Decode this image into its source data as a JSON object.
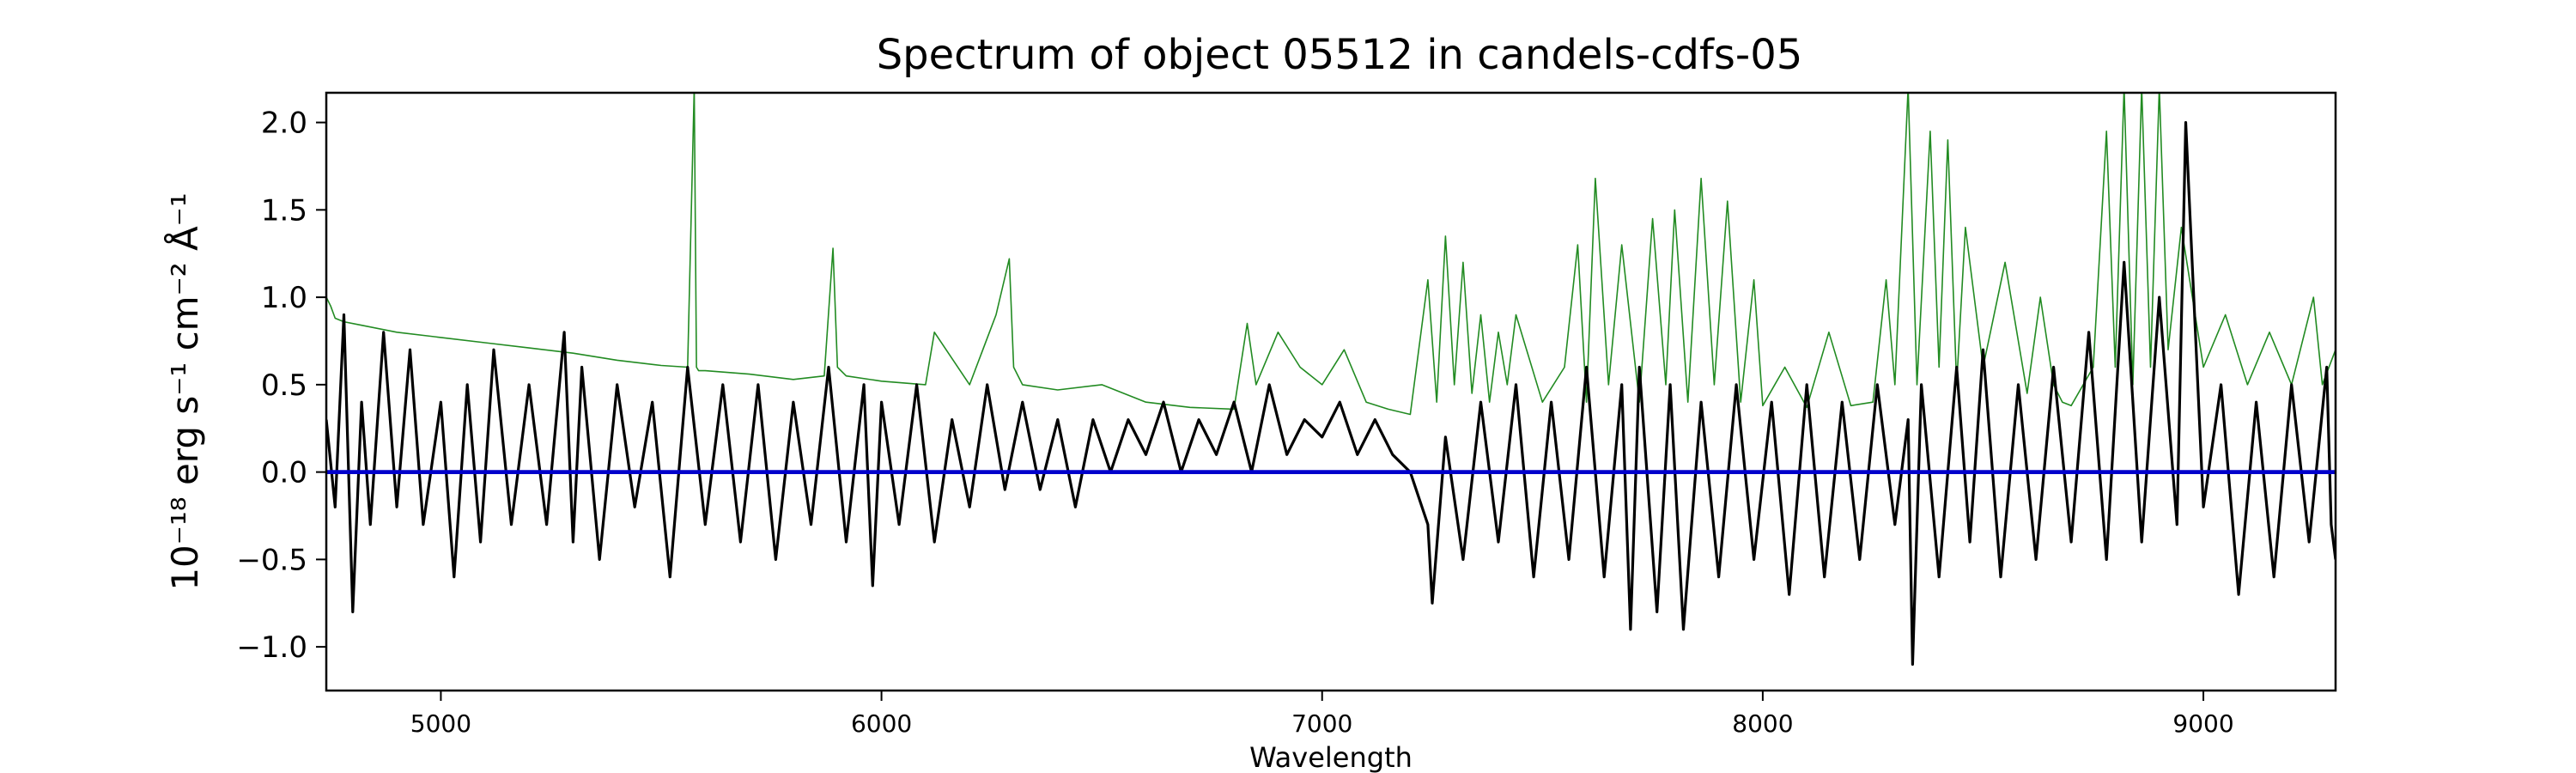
{
  "chart_data": {
    "type": "line",
    "title": "Spectrum of object 05512 in candels-cdfs-05",
    "xlabel": "Wavelength",
    "ylabel": "10⁻¹⁸ erg s⁻¹ cm⁻² Å⁻¹",
    "xlim": [
      4740,
      9300
    ],
    "ylim": [
      -1.25,
      2.17
    ],
    "xticks": [
      5000,
      6000,
      7000,
      8000,
      9000
    ],
    "xtick_labels": [
      "5000",
      "6000",
      "7000",
      "8000",
      "9000"
    ],
    "yticks": [
      2.0,
      1.5,
      1.0,
      0.5,
      0.0,
      -0.5,
      -1.0
    ],
    "ytick_labels": [
      "2.0",
      "1.5",
      "1.0",
      "0.5",
      "0.0",
      "−0.5",
      "−1.0"
    ],
    "grid": false,
    "legend": "none",
    "series": [
      {
        "color": "#228b22",
        "linewidth": 1,
        "x": [
          4740,
          4750,
          4760,
          4780,
          4820,
          4900,
          5000,
          5100,
          5200,
          5300,
          5400,
          5500,
          5560,
          5575,
          5580,
          5585,
          5600,
          5700,
          5800,
          5870,
          5890,
          5900,
          5920,
          6000,
          6100,
          6120,
          6200,
          6260,
          6290,
          6300,
          6320,
          6400,
          6500,
          6600,
          6700,
          6800,
          6830,
          6850,
          6900,
          6950,
          7000,
          7050,
          7100,
          7150,
          7200,
          7240,
          7260,
          7280,
          7300,
          7320,
          7340,
          7360,
          7380,
          7400,
          7420,
          7440,
          7500,
          7550,
          7580,
          7600,
          7620,
          7650,
          7680,
          7720,
          7750,
          7780,
          7800,
          7830,
          7860,
          7890,
          7920,
          7950,
          7980,
          8000,
          8050,
          8100,
          8150,
          8200,
          8250,
          8280,
          8300,
          8330,
          8350,
          8380,
          8400,
          8420,
          8440,
          8460,
          8500,
          8550,
          8600,
          8630,
          8660,
          8680,
          8700,
          8750,
          8780,
          8800,
          8820,
          8840,
          8860,
          8880,
          8900,
          8920,
          8950,
          9000,
          9050,
          9100,
          9150,
          9200,
          9250,
          9270,
          9300
        ],
        "values": [
          1.0,
          0.95,
          0.88,
          0.86,
          0.84,
          0.8,
          0.77,
          0.74,
          0.71,
          0.68,
          0.64,
          0.61,
          0.6,
          2.2,
          0.6,
          0.58,
          0.58,
          0.56,
          0.53,
          0.55,
          1.28,
          0.6,
          0.55,
          0.52,
          0.5,
          0.8,
          0.5,
          0.9,
          1.22,
          0.6,
          0.5,
          0.47,
          0.5,
          0.4,
          0.37,
          0.36,
          0.85,
          0.5,
          0.8,
          0.6,
          0.5,
          0.7,
          0.4,
          0.36,
          0.33,
          1.1,
          0.4,
          1.35,
          0.5,
          1.2,
          0.45,
          0.9,
          0.4,
          0.8,
          0.5,
          0.9,
          0.4,
          0.6,
          1.3,
          0.4,
          1.68,
          0.5,
          1.3,
          0.4,
          1.45,
          0.5,
          1.5,
          0.4,
          1.68,
          0.5,
          1.55,
          0.4,
          1.1,
          0.38,
          0.6,
          0.37,
          0.8,
          0.38,
          0.4,
          1.1,
          0.5,
          2.2,
          0.5,
          1.95,
          0.6,
          1.9,
          0.5,
          1.4,
          0.6,
          1.2,
          0.45,
          1.0,
          0.5,
          0.4,
          0.38,
          0.6,
          1.95,
          0.6,
          2.2,
          0.5,
          2.2,
          0.6,
          2.2,
          0.7,
          1.4,
          0.6,
          0.9,
          0.5,
          0.8,
          0.5,
          1.0,
          0.5,
          0.7
        ]
      },
      {
        "color": "#000000",
        "linewidth": 2,
        "x": [
          4740,
          4760,
          4780,
          4800,
          4820,
          4840,
          4870,
          4900,
          4930,
          4960,
          5000,
          5030,
          5060,
          5090,
          5120,
          5160,
          5200,
          5240,
          5280,
          5300,
          5320,
          5360,
          5400,
          5440,
          5480,
          5520,
          5560,
          5600,
          5640,
          5680,
          5720,
          5760,
          5800,
          5840,
          5880,
          5920,
          5960,
          5980,
          6000,
          6040,
          6080,
          6120,
          6160,
          6200,
          6240,
          6280,
          6320,
          6360,
          6400,
          6440,
          6480,
          6520,
          6560,
          6600,
          6640,
          6680,
          6720,
          6760,
          6800,
          6840,
          6880,
          6920,
          6960,
          7000,
          7040,
          7080,
          7120,
          7160,
          7200,
          7240,
          7250,
          7280,
          7320,
          7360,
          7400,
          7440,
          7480,
          7520,
          7560,
          7600,
          7640,
          7680,
          7700,
          7720,
          7760,
          7790,
          7820,
          7860,
          7900,
          7940,
          7980,
          8020,
          8060,
          8100,
          8140,
          8180,
          8220,
          8260,
          8300,
          8330,
          8340,
          8360,
          8400,
          8440,
          8470,
          8500,
          8540,
          8580,
          8620,
          8660,
          8700,
          8740,
          8780,
          8820,
          8860,
          8900,
          8940,
          8960,
          9000,
          9040,
          9080,
          9120,
          9160,
          9200,
          9240,
          9280,
          9290,
          9300
        ],
        "values": [
          0.3,
          -0.2,
          0.9,
          -0.8,
          0.4,
          -0.3,
          0.8,
          -0.2,
          0.7,
          -0.3,
          0.4,
          -0.6,
          0.5,
          -0.4,
          0.7,
          -0.3,
          0.5,
          -0.3,
          0.8,
          -0.4,
          0.6,
          -0.5,
          0.5,
          -0.2,
          0.4,
          -0.6,
          0.6,
          -0.3,
          0.5,
          -0.4,
          0.5,
          -0.5,
          0.4,
          -0.3,
          0.6,
          -0.4,
          0.5,
          -0.65,
          0.4,
          -0.3,
          0.5,
          -0.4,
          0.3,
          -0.2,
          0.5,
          -0.1,
          0.4,
          -0.1,
          0.3,
          -0.2,
          0.3,
          0.0,
          0.3,
          0.1,
          0.4,
          0.0,
          0.3,
          0.1,
          0.4,
          0.0,
          0.5,
          0.1,
          0.3,
          0.2,
          0.4,
          0.1,
          0.3,
          0.1,
          0.0,
          -0.3,
          -0.75,
          0.2,
          -0.5,
          0.4,
          -0.4,
          0.5,
          -0.6,
          0.4,
          -0.5,
          0.6,
          -0.6,
          0.5,
          -0.9,
          0.6,
          -0.8,
          0.5,
          -0.9,
          0.4,
          -0.6,
          0.5,
          -0.5,
          0.4,
          -0.7,
          0.5,
          -0.6,
          0.4,
          -0.5,
          0.5,
          -0.3,
          0.3,
          -1.1,
          0.5,
          -0.6,
          0.6,
          -0.4,
          0.7,
          -0.6,
          0.5,
          -0.5,
          0.6,
          -0.4,
          0.8,
          -0.5,
          1.2,
          -0.4,
          1.0,
          -0.3,
          2.0,
          -0.2,
          0.5,
          -0.7,
          0.4,
          -0.6,
          0.5,
          -0.4,
          0.6,
          -0.3,
          -0.5
        ]
      },
      {
        "color": "#0000cc",
        "linewidth": 3,
        "x": [
          4740,
          9300
        ],
        "values": [
          0.0,
          0.0
        ]
      }
    ]
  }
}
